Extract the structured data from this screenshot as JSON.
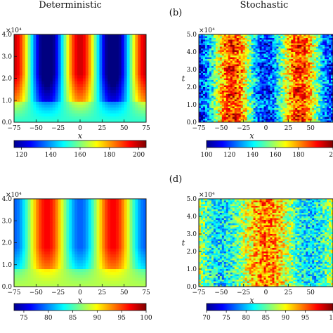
{
  "headers": {
    "left": "Deterministic",
    "right": "Stochastic",
    "b": "(b)",
    "d": "(d)"
  },
  "panels": [
    {
      "id": "top-left",
      "x_ticks": [
        "−75",
        "−50",
        "−25",
        "0",
        "25",
        "50",
        "75"
      ],
      "y_ticks": [
        "0.0",
        "1.0",
        "2.0",
        "3.0",
        "4.0"
      ],
      "y_exponent": "×10⁴",
      "xlabel": "x",
      "ylabel": "",
      "colorbar_ticks": [
        "120",
        "140",
        "160",
        "180",
        "200"
      ],
      "colorbar_range": [
        115,
        205
      ]
    },
    {
      "id": "top-right",
      "x_ticks": [
        "−75",
        "−50",
        "−25",
        "0",
        "25",
        "50"
      ],
      "y_ticks": [
        "0.0",
        "1.0",
        "2.0",
        "3.0",
        "4.0",
        "5.0"
      ],
      "y_exponent": "×10⁴",
      "xlabel": "x",
      "ylabel": "t",
      "colorbar_ticks": [
        "100",
        "120",
        "140",
        "160",
        "180",
        "2"
      ],
      "colorbar_range": [
        100,
        210
      ]
    },
    {
      "id": "bottom-left",
      "x_ticks": [
        "−75",
        "−50",
        "−25",
        "0",
        "25",
        "50",
        "75"
      ],
      "y_ticks": [
        "0.0",
        "1.0",
        "2.0",
        "3.0",
        "4.0"
      ],
      "y_exponent": "×10⁴",
      "xlabel": "x",
      "ylabel": "",
      "colorbar_ticks": [
        "75",
        "80",
        "85",
        "90",
        "95",
        "100"
      ],
      "colorbar_range": [
        73,
        100
      ]
    },
    {
      "id": "bottom-right",
      "x_ticks": [
        "−75",
        "−50",
        "−25",
        "0",
        "25",
        "50"
      ],
      "y_ticks": [
        "0.0",
        "1.0",
        "2.0",
        "3.0",
        "4.0",
        "5.0"
      ],
      "y_exponent": "×10⁴",
      "xlabel": "x",
      "ylabel": "t",
      "colorbar_ticks": [
        "70",
        "75",
        "80",
        "85",
        "90",
        "95",
        "1"
      ],
      "colorbar_range": [
        70,
        102
      ]
    }
  ],
  "chart_data": [
    {
      "type": "heatmap",
      "title": "Deterministic",
      "xlabel": "x",
      "ylabel": "",
      "xlim": [
        -75,
        75
      ],
      "ylim": [
        0,
        40000
      ],
      "colorbar": [
        115,
        205
      ],
      "colormap": "jet",
      "peaks_x": [
        0,
        75,
        -75
      ],
      "troughs_x": [
        -37,
        37
      ],
      "peak_value": 200,
      "trough_value": 120
    },
    {
      "type": "heatmap",
      "title": "Stochastic",
      "xlabel": "x",
      "ylabel": "t",
      "xlim": [
        -75,
        75
      ],
      "ylim": [
        0,
        50000
      ],
      "colorbar": [
        100,
        210
      ],
      "colormap": "jet",
      "peaks_x": [
        -37,
        37
      ],
      "troughs_x": [
        0
      ]
    },
    {
      "type": "heatmap",
      "title": "",
      "xlabel": "x",
      "ylabel": "",
      "xlim": [
        -75,
        75
      ],
      "ylim": [
        0,
        40000
      ],
      "colorbar": [
        73,
        100
      ],
      "colormap": "jet",
      "peaks_x": [
        -37,
        37
      ],
      "troughs_x": [
        0,
        -75,
        75
      ],
      "peak_value": 97,
      "trough_value": 75
    },
    {
      "type": "heatmap",
      "title": "",
      "xlabel": "x",
      "ylabel": "t",
      "xlim": [
        -75,
        75
      ],
      "ylim": [
        0,
        50000
      ],
      "colorbar": [
        70,
        102
      ],
      "colormap": "jet",
      "peaks_x": [
        0
      ],
      "troughs_x": [
        -50,
        50
      ]
    }
  ]
}
